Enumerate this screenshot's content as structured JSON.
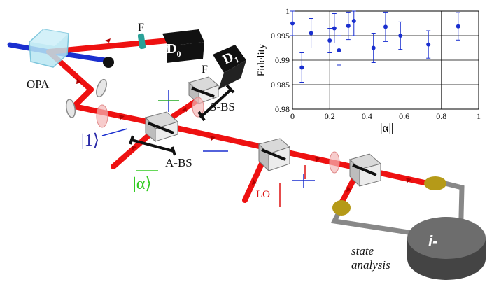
{
  "labels": {
    "filter_top": "F",
    "filter_mid": "F",
    "detector0_letter": "D",
    "detector0_sub": "0",
    "detector1_letter": "D",
    "detector1_sub": "1",
    "opa": "OPA",
    "sbs": "S-BS",
    "abs": "A-BS",
    "ket1": "|1⟩",
    "ketalpha": "|α⟩",
    "lo": "LO",
    "state_analysis_1": "state",
    "state_analysis_2": "analysis",
    "device": "i-"
  },
  "colors": {
    "beam": "#ee1111",
    "beam_dark": "#b00000",
    "pump_beam": "#1a2fcf",
    "ket1": "#2a2aa8",
    "ketalpha": "#33cc22",
    "lo": "#dd1111"
  },
  "chart_data": {
    "type": "scatter",
    "title": "",
    "xlabel": "||α||",
    "ylabel": "Fidelity",
    "xlim": [
      0,
      1
    ],
    "ylim": [
      0.98,
      1
    ],
    "xticks": [
      "0",
      "0.2",
      "0.4",
      "0.6",
      "0.8",
      "1"
    ],
    "yticks": [
      "0.98",
      "0.985",
      "0.99",
      "0.995",
      "1"
    ],
    "grid": true,
    "series": [
      {
        "x": [
          0.0,
          0.05,
          0.1,
          0.2,
          0.225,
          0.25,
          0.3,
          0.33,
          0.435,
          0.5,
          0.58,
          0.73,
          0.89
        ],
        "y": [
          0.9975,
          0.9885,
          0.9955,
          0.994,
          0.9965,
          0.992,
          0.997,
          0.998,
          0.9925,
          0.9968,
          0.995,
          0.9932,
          0.9969
        ],
        "err": [
          0.0025,
          0.003,
          0.003,
          0.0025,
          0.003,
          0.003,
          0.0028,
          0.003,
          0.003,
          0.003,
          0.0028,
          0.0028,
          0.0028
        ]
      }
    ]
  }
}
